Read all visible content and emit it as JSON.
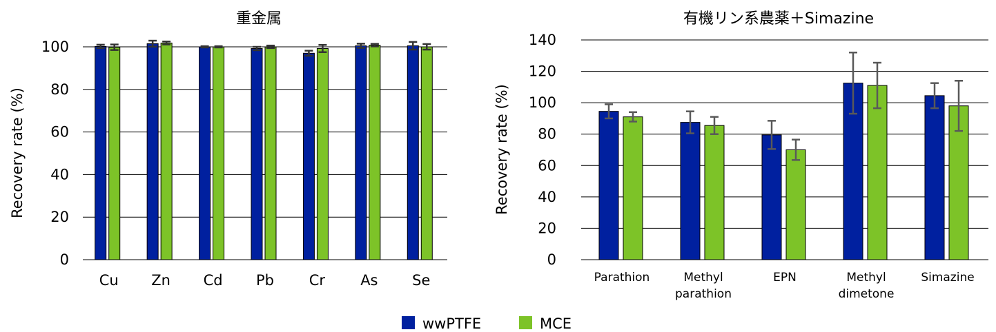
{
  "colors": {
    "wwPTFE": "#00209F",
    "MCE": "#7DC328",
    "error_bar_left": "#333333",
    "error_bar_right": "#595959",
    "grid": "#000000"
  },
  "legend": {
    "position": "bottom-center",
    "items": [
      "wwPTFE",
      "MCE"
    ]
  },
  "chart_data": [
    {
      "type": "bar",
      "title": "重金属",
      "xlabel": "",
      "ylabel": "Recovery rate (%)",
      "ylim": [
        0,
        100
      ],
      "yticks": [
        0,
        20,
        40,
        60,
        80,
        100
      ],
      "grid": true,
      "categories": [
        "Cu",
        "Zn",
        "Cd",
        "Pb",
        "Cr",
        "As",
        "Se"
      ],
      "series": [
        {
          "name": "wwPTFE",
          "values": [
            100.2,
            101.5,
            100.0,
            99.2,
            97.0,
            100.5,
            100.5
          ],
          "errors": [
            0.8,
            1.4,
            0.3,
            0.8,
            1.2,
            1.0,
            1.8
          ]
        },
        {
          "name": "MCE",
          "values": [
            99.8,
            101.8,
            100.0,
            100.0,
            99.2,
            100.8,
            100.0
          ],
          "errors": [
            1.3,
            0.7,
            0.3,
            0.6,
            1.7,
            0.6,
            1.3
          ]
        }
      ]
    },
    {
      "type": "bar",
      "title": "有機リン系農薬＋Simazine",
      "xlabel": "",
      "ylabel": "Recovery rate (%)",
      "ylim": [
        0,
        140
      ],
      "yticks": [
        0,
        20,
        40,
        60,
        80,
        100,
        120,
        140
      ],
      "grid": true,
      "categories": [
        [
          "Parathion"
        ],
        [
          "Methyl",
          "parathion"
        ],
        [
          "EPN"
        ],
        [
          "Methyl",
          "dimetone"
        ],
        [
          "Simazine"
        ]
      ],
      "series": [
        {
          "name": "wwPTFE",
          "values": [
            94.5,
            87.5,
            79.5,
            112.5,
            104.5
          ],
          "errors": [
            4.5,
            7.0,
            9.0,
            19.5,
            8.0
          ]
        },
        {
          "name": "MCE",
          "values": [
            91.0,
            85.5,
            70.0,
            111.0,
            98.0
          ],
          "errors": [
            3.0,
            5.5,
            6.5,
            14.5,
            16.0
          ]
        }
      ]
    }
  ]
}
